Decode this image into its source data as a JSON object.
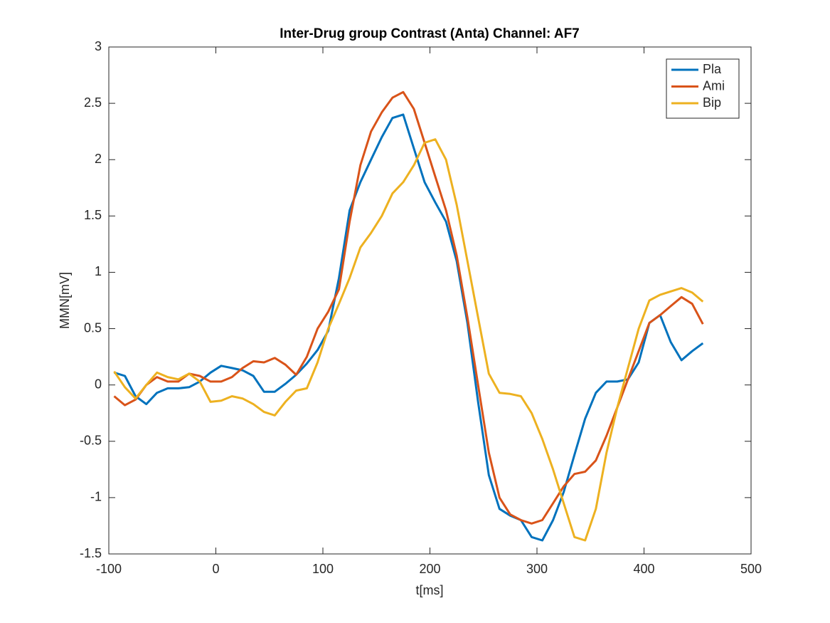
{
  "chart_data": {
    "type": "line",
    "title": "Inter-Drug group Contrast (Anta) Channel: AF7",
    "x_label": "t[ms]",
    "y_label": "MMN[mV]",
    "x": [
      -95,
      -85,
      -75,
      -65,
      -55,
      -45,
      -35,
      -25,
      -15,
      -5,
      5,
      15,
      25,
      35,
      45,
      55,
      65,
      75,
      85,
      95,
      105,
      115,
      125,
      135,
      145,
      155,
      165,
      175,
      185,
      195,
      205,
      215,
      225,
      235,
      245,
      255,
      265,
      275,
      285,
      295,
      305,
      315,
      325,
      335,
      345,
      355,
      365,
      375,
      385,
      395,
      405,
      415,
      425,
      435,
      445,
      455
    ],
    "series": [
      {
        "name": "Pla",
        "color": "#0072BD",
        "values": [
          0.11,
          0.08,
          -0.1,
          -0.17,
          -0.07,
          -0.03,
          -0.03,
          -0.02,
          0.03,
          0.11,
          0.17,
          0.15,
          0.13,
          0.08,
          -0.06,
          -0.06,
          0.01,
          0.09,
          0.19,
          0.31,
          0.48,
          0.95,
          1.55,
          1.8,
          2.0,
          2.2,
          2.37,
          2.4,
          2.1,
          1.8,
          1.62,
          1.45,
          1.1,
          0.55,
          -0.15,
          -0.8,
          -1.1,
          -1.16,
          -1.2,
          -1.35,
          -1.38,
          -1.2,
          -0.95,
          -0.62,
          -0.3,
          -0.07,
          0.03,
          0.03,
          0.05,
          0.2,
          0.55,
          0.62,
          0.38,
          0.22,
          0.3,
          0.37
        ]
      },
      {
        "name": "Ami",
        "color": "#D95319",
        "values": [
          -0.1,
          -0.18,
          -0.13,
          0.0,
          0.07,
          0.03,
          0.03,
          0.1,
          0.08,
          0.03,
          0.03,
          0.07,
          0.15,
          0.21,
          0.2,
          0.24,
          0.18,
          0.09,
          0.25,
          0.5,
          0.65,
          0.85,
          1.45,
          1.95,
          2.25,
          2.42,
          2.55,
          2.6,
          2.45,
          2.15,
          1.85,
          1.55,
          1.15,
          0.6,
          0.0,
          -0.6,
          -1.0,
          -1.15,
          -1.2,
          -1.23,
          -1.2,
          -1.05,
          -0.9,
          -0.79,
          -0.77,
          -0.67,
          -0.45,
          -0.2,
          0.05,
          0.3,
          0.55,
          0.62,
          0.7,
          0.78,
          0.72,
          0.54
        ]
      },
      {
        "name": "Bip",
        "color": "#EDB120",
        "values": [
          0.12,
          -0.02,
          -0.12,
          0.0,
          0.11,
          0.07,
          0.05,
          0.1,
          0.03,
          -0.15,
          -0.14,
          -0.1,
          -0.12,
          -0.17,
          -0.24,
          -0.27,
          -0.15,
          -0.05,
          -0.03,
          0.2,
          0.5,
          0.72,
          0.95,
          1.22,
          1.35,
          1.5,
          1.7,
          1.8,
          1.95,
          2.15,
          2.18,
          2.0,
          1.6,
          1.1,
          0.6,
          0.1,
          -0.07,
          -0.08,
          -0.1,
          -0.25,
          -0.48,
          -0.75,
          -1.05,
          -1.35,
          -1.38,
          -1.1,
          -0.6,
          -0.2,
          0.15,
          0.5,
          0.75,
          0.8,
          0.83,
          0.86,
          0.82,
          0.74
        ]
      }
    ],
    "xlim": [
      -100,
      500
    ],
    "xticks": [
      -100,
      0,
      100,
      200,
      300,
      400,
      500
    ],
    "ylim": [
      -1.5,
      3
    ],
    "yticks": [
      -1.5,
      -1,
      -0.5,
      0,
      0.5,
      1,
      1.5,
      2,
      2.5,
      3
    ],
    "legend": "northeast",
    "grid": false
  }
}
